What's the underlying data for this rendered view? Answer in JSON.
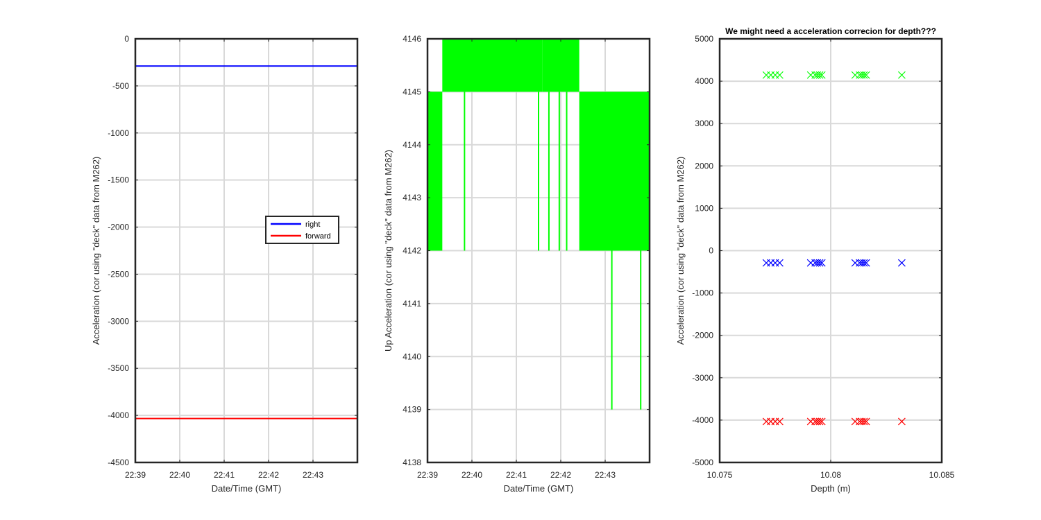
{
  "chart_data": [
    {
      "type": "line",
      "xlabel": "Date/Time (GMT)",
      "ylabel": "Acceleration (cor using \"deck\" data from M262)",
      "x_ticks": [
        "22:39",
        "22:40",
        "22:41",
        "22:42",
        "22:43"
      ],
      "xlim": [
        "22:39",
        "22:44"
      ],
      "ylim": [
        -4500,
        0
      ],
      "y_ticks": [
        0,
        -500,
        -1000,
        -1500,
        -2000,
        -2500,
        -3000,
        -3500,
        -4000,
        -4500
      ],
      "grid": true,
      "legend": {
        "placement": "center-right",
        "entries": [
          "right",
          "forward"
        ]
      },
      "series": [
        {
          "name": "right",
          "color": "#0000ff",
          "x": [
            "22:39",
            "22:44"
          ],
          "y": [
            -289,
            -289
          ]
        },
        {
          "name": "forward",
          "color": "#ff0000",
          "x": [
            "22:39",
            "22:44"
          ],
          "y": [
            -4033,
            -4033
          ]
        }
      ]
    },
    {
      "type": "line",
      "xlabel": "Date/Time (GMT)",
      "ylabel": "Up Acceleration (cor using \"deck\" data from M262)",
      "x_ticks": [
        "22:39",
        "22:40",
        "22:41",
        "22:42",
        "22:43"
      ],
      "xlim": [
        "22:39",
        "22:44"
      ],
      "ylim": [
        4138,
        4146
      ],
      "y_ticks": [
        4146,
        4145,
        4144,
        4143,
        4142,
        4141,
        4140,
        4139,
        4138
      ],
      "grid": true,
      "series": [
        {
          "color": "#00ff00",
          "segments": [
            {
              "x": [
                "22:39",
                "22:39:20"
              ],
              "y_range": [
                4142,
                4145
              ]
            },
            {
              "x": [
                "22:39:20",
                "22:40:30"
              ],
              "y_range": [
                4145,
                4146
              ]
            },
            {
              "x": [
                "22:40:30",
                "22:41:35"
              ],
              "y_range": [
                4145,
                4146
              ]
            },
            {
              "x": [
                "22:41:35",
                "22:42:25"
              ],
              "y_range": [
                4145,
                4146
              ]
            },
            {
              "x": [
                "22:42:25",
                "22:44"
              ],
              "y_range": [
                4142,
                4145
              ]
            }
          ],
          "spikes": [
            {
              "x": "22:39:05",
              "y": [
                4142,
                4145
              ]
            },
            {
              "x": "22:39:50",
              "y": [
                4142,
                4145
              ]
            },
            {
              "x": "22:41:30",
              "y": [
                4142,
                4145
              ]
            },
            {
              "x": "22:41:44",
              "y": [
                4142,
                4145
              ]
            },
            {
              "x": "22:41:58",
              "y": [
                4142,
                4145
              ]
            },
            {
              "x": "22:42:08",
              "y": [
                4142,
                4145
              ]
            },
            {
              "x": "22:43:09",
              "y": [
                4139,
                4142
              ]
            },
            {
              "x": "22:43:48",
              "y": [
                4139,
                4142
              ]
            }
          ]
        }
      ]
    },
    {
      "type": "scatter",
      "title": "We might need a acceleration correcion for depth???",
      "xlabel": "Depth (m)",
      "ylabel": "Acceleration (cor using \"deck\" data from M262)",
      "x_ticks": [
        "10.075",
        "10.08",
        "10.085"
      ],
      "xlim": [
        10.075,
        10.085
      ],
      "ylim": [
        -5000,
        5000
      ],
      "y_ticks": [
        5000,
        4000,
        3000,
        2000,
        1000,
        0,
        -1000,
        -2000,
        -3000,
        -4000,
        -5000
      ],
      "grid": true,
      "marker": "x",
      "depths": [
        10.0771,
        10.0773,
        10.0775,
        10.0777,
        10.0791,
        10.0793,
        10.0794,
        10.0795,
        10.0796,
        10.0811,
        10.0813,
        10.0814,
        10.0815,
        10.0816,
        10.0832
      ],
      "series": [
        {
          "color": "#00ff00",
          "y": [
            4145,
            4145,
            4145,
            4145,
            4145,
            4145,
            4145,
            4145,
            4145,
            4145,
            4145,
            4145,
            4145,
            4145,
            4145
          ]
        },
        {
          "color": "#0000ff",
          "y": [
            -289,
            -289,
            -289,
            -289,
            -289,
            -289,
            -289,
            -289,
            -289,
            -289,
            -289,
            -289,
            -289,
            -289,
            -289
          ]
        },
        {
          "color": "#ff0000",
          "y": [
            -4033,
            -4033,
            -4033,
            -4033,
            -4033,
            -4033,
            -4033,
            -4033,
            -4033,
            -4033,
            -4033,
            -4033,
            -4033,
            -4033,
            -4033
          ]
        }
      ]
    }
  ]
}
